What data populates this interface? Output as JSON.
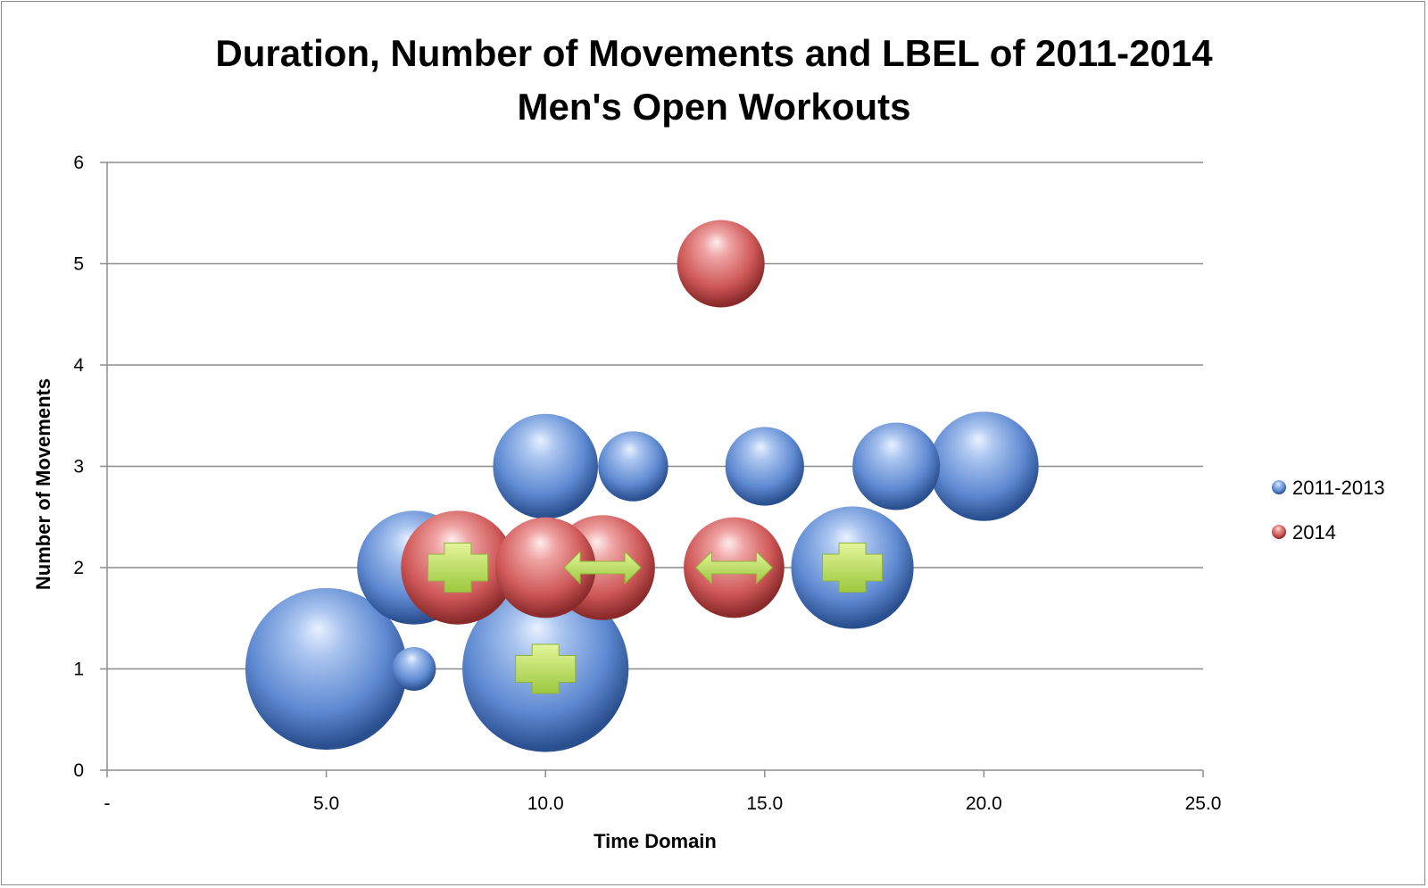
{
  "chart_data": {
    "type": "bubble",
    "title_lines": [
      "Duration, Number of Movements and LBEL of 2011-2014",
      "Men's Open Workouts"
    ],
    "xlabel": "Time Domain",
    "ylabel": "Number of Movements",
    "xlim": [
      0,
      25
    ],
    "ylim": [
      0,
      6
    ],
    "x_ticks": [
      {
        "value": 0,
        "label": "-"
      },
      {
        "value": 5,
        "label": "5.0"
      },
      {
        "value": 10,
        "label": "10.0"
      },
      {
        "value": 15,
        "label": "15.0"
      },
      {
        "value": 20,
        "label": "20.0"
      },
      {
        "value": 25,
        "label": "25.0"
      }
    ],
    "y_ticks": [
      0,
      1,
      2,
      3,
      4,
      5,
      6
    ],
    "grid": "horizontal",
    "legend_position": "right",
    "series": [
      {
        "name": "2011-2013",
        "color": "#5b86cf",
        "points": [
          {
            "x": 5,
            "y": 1,
            "size": 3.7,
            "marker": "none"
          },
          {
            "x": 7,
            "y": 1,
            "size": 1.0,
            "marker": "none"
          },
          {
            "x": 10,
            "y": 1,
            "size": 3.8,
            "marker": "plus"
          },
          {
            "x": 7,
            "y": 2,
            "size": 2.6,
            "marker": "none"
          },
          {
            "x": 17,
            "y": 2,
            "size": 2.8,
            "marker": "plus"
          },
          {
            "x": 10,
            "y": 3,
            "size": 2.4,
            "marker": "none"
          },
          {
            "x": 12,
            "y": 3,
            "size": 1.6,
            "marker": "none"
          },
          {
            "x": 15,
            "y": 3,
            "size": 1.8,
            "marker": "none"
          },
          {
            "x": 18,
            "y": 3,
            "size": 2.0,
            "marker": "none"
          },
          {
            "x": 20,
            "y": 3,
            "size": 2.5,
            "marker": "none"
          }
        ]
      },
      {
        "name": "2014",
        "color": "#d05555",
        "points": [
          {
            "x": 8,
            "y": 2,
            "size": 2.6,
            "marker": "plus"
          },
          {
            "x": 10,
            "y": 2,
            "size": 2.3,
            "marker": "none"
          },
          {
            "x": 11.3,
            "y": 2,
            "size": 2.4,
            "marker": "double-arrow"
          },
          {
            "x": 14.3,
            "y": 2,
            "size": 2.3,
            "marker": "double-arrow"
          },
          {
            "x": 14,
            "y": 5,
            "size": 2.0,
            "marker": "none"
          }
        ]
      }
    ]
  }
}
